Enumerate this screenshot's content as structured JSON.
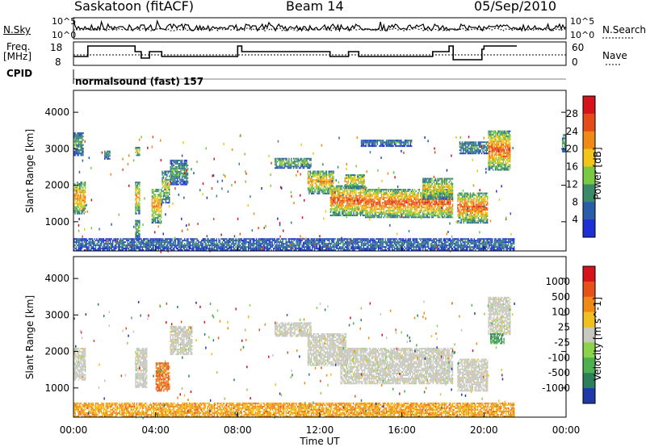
{
  "header": {
    "station": "Saskatoon (fitACF)",
    "beam": "Beam 14",
    "date": "05/Sep/2010"
  },
  "top_panels": {
    "nsky_label": "N.Sky",
    "nsearch_label": "N.Search",
    "freq_label_line1": "Freq.",
    "freq_label_line2": "[MHz]",
    "nave_label": "Nave",
    "cpid_label": "CPID",
    "cpid_value": "normalsound (fast) 157",
    "noise_ticks_left": [
      "10^5",
      "10^0"
    ],
    "noise_ticks_right": [
      "10^5",
      "10^0"
    ],
    "freq_ticks": [
      "18",
      "8"
    ],
    "nave_ticks": [
      "60",
      "0"
    ]
  },
  "chart_data": [
    {
      "type": "heatmap",
      "name": "power-panel",
      "ylabel": "Slant Range [km]",
      "yticks": [
        "1000",
        "2000",
        "3000",
        "4000"
      ],
      "ylim": [
        200,
        4600
      ],
      "xlim": [
        0,
        24
      ],
      "colorbar": {
        "label": "Power [dB]",
        "ticks": [
          "4",
          "8",
          "12",
          "16",
          "20",
          "24",
          "28"
        ],
        "colors": [
          "#1f2fd6",
          "#2a5caa",
          "#3a8a6a",
          "#7ac943",
          "#f2c51a",
          "#f08a17",
          "#e64a19",
          "#d4141a"
        ]
      },
      "regions": [
        {
          "t0": 0.0,
          "t1": 0.6,
          "r0": 1200,
          "r1": 2100,
          "level": 0.75
        },
        {
          "t0": 0.0,
          "t1": 0.5,
          "r0": 2800,
          "r1": 3450,
          "level": 0.35
        },
        {
          "t0": 1.5,
          "t1": 1.8,
          "r0": 2700,
          "r1": 2950,
          "level": 0.3
        },
        {
          "t0": 3.0,
          "t1": 3.25,
          "r0": 2800,
          "r1": 3050,
          "level": 0.6
        },
        {
          "t0": 3.0,
          "t1": 3.25,
          "r0": 1200,
          "r1": 2100,
          "level": 0.7
        },
        {
          "t0": 3.0,
          "t1": 3.25,
          "r0": 550,
          "r1": 1050,
          "level": 0.4
        },
        {
          "t0": 3.8,
          "t1": 4.3,
          "r0": 950,
          "r1": 1900,
          "level": 0.7
        },
        {
          "t0": 4.3,
          "t1": 4.7,
          "r0": 1500,
          "r1": 2400,
          "level": 0.5
        },
        {
          "t0": 4.7,
          "t1": 5.6,
          "r0": 2000,
          "r1": 2700,
          "level": 0.35
        },
        {
          "t0": 9.8,
          "t1": 11.6,
          "r0": 2450,
          "r1": 2750,
          "level": 0.45
        },
        {
          "t0": 11.4,
          "t1": 12.7,
          "r0": 1750,
          "r1": 2400,
          "level": 0.7
        },
        {
          "t0": 12.5,
          "t1": 14.3,
          "r0": 1150,
          "r1": 2000,
          "level": 0.85
        },
        {
          "t0": 13.2,
          "t1": 14.2,
          "r0": 1900,
          "r1": 2300,
          "level": 0.65
        },
        {
          "t0": 14.2,
          "t1": 18.5,
          "r0": 1100,
          "r1": 1900,
          "level": 0.85
        },
        {
          "t0": 17.0,
          "t1": 18.5,
          "r0": 1600,
          "r1": 2200,
          "level": 0.6
        },
        {
          "t0": 18.7,
          "t1": 20.2,
          "r0": 950,
          "r1": 1800,
          "level": 0.85
        },
        {
          "t0": 20.2,
          "t1": 21.3,
          "r0": 2400,
          "r1": 3500,
          "level": 0.85
        },
        {
          "t0": 18.8,
          "t1": 20.2,
          "r0": 2850,
          "r1": 3200,
          "level": 0.3
        },
        {
          "t0": 14.0,
          "t1": 16.5,
          "r0": 3050,
          "r1": 3250,
          "level": 0.25
        },
        {
          "t0": 23.8,
          "t1": 24.0,
          "r0": 2900,
          "r1": 3400,
          "level": 0.4
        },
        {
          "t0": 0.0,
          "t1": 21.5,
          "r0": 200,
          "r1": 550,
          "level": 0.2
        }
      ]
    },
    {
      "type": "heatmap",
      "name": "velocity-panel",
      "ylabel": "Slant Range [km]",
      "yticks": [
        "1000",
        "2000",
        "3000",
        "4000"
      ],
      "ylim": [
        200,
        4600
      ],
      "xlim": [
        0,
        24
      ],
      "xticks": [
        "00:00",
        "04:00",
        "08:00",
        "12:00",
        "16:00",
        "20:00",
        "00:00"
      ],
      "xlabel": "Time UT",
      "colorbar": {
        "label": "Velocity [m s^-1]",
        "ticks": [
          "1000",
          "500",
          "100",
          "25",
          "-25",
          "-100",
          "-500",
          "-1000"
        ],
        "colors": [
          "#1f3aa8",
          "#2c7f5a",
          "#4caf50",
          "#8bd34a",
          "#c8c8c0",
          "#f0c020",
          "#f08a17",
          "#e8501a",
          "#d4141a"
        ]
      },
      "regions": [
        {
          "t0": 0.0,
          "t1": 0.6,
          "r0": 1200,
          "r1": 2100,
          "level": 0.5
        },
        {
          "t0": 3.0,
          "t1": 3.6,
          "r0": 1000,
          "r1": 2100,
          "level": 0.5
        },
        {
          "t0": 4.0,
          "t1": 4.7,
          "r0": 900,
          "r1": 1700,
          "level": 0.8
        },
        {
          "t0": 4.7,
          "t1": 5.8,
          "r0": 1900,
          "r1": 2700,
          "level": 0.5
        },
        {
          "t0": 9.8,
          "t1": 11.6,
          "r0": 2400,
          "r1": 2800,
          "level": 0.5
        },
        {
          "t0": 11.4,
          "t1": 13.3,
          "r0": 1600,
          "r1": 2500,
          "level": 0.5
        },
        {
          "t0": 13.0,
          "t1": 18.5,
          "r0": 1100,
          "r1": 2100,
          "level": 0.5
        },
        {
          "t0": 18.7,
          "t1": 20.2,
          "r0": 900,
          "r1": 1800,
          "level": 0.5
        },
        {
          "t0": 20.2,
          "t1": 21.3,
          "r0": 2450,
          "r1": 3500,
          "level": 0.5
        },
        {
          "t0": 20.3,
          "t1": 21.0,
          "r0": 2200,
          "r1": 2500,
          "level": 0.2
        },
        {
          "t0": 0.0,
          "t1": 21.5,
          "r0": 200,
          "r1": 600,
          "level": 0.7
        }
      ]
    }
  ]
}
